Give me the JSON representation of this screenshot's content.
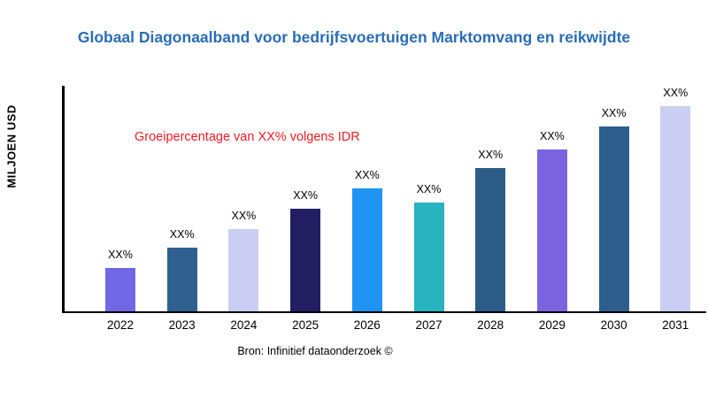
{
  "chart_data": {
    "type": "bar",
    "title": "Globaal Diagonaalband voor bedrijfsvoertuigen Marktomvang en reikwijdte",
    "ylabel": "MILJOEN USD",
    "annotation": "Groeipercentage van XX% volgens IDR",
    "source": "Bron: Infinitief dataonderzoek ©",
    "categories": [
      "2022",
      "2023",
      "2024",
      "2025",
      "2026",
      "2027",
      "2028",
      "2029",
      "2030",
      "2031"
    ],
    "values": [
      21,
      31,
      40,
      50,
      60,
      53,
      70,
      79,
      90,
      100
    ],
    "bar_labels": [
      "XX%",
      "XX%",
      "XX%",
      "XX%",
      "XX%",
      "XX%",
      "XX%",
      "XX%",
      "XX%",
      "XX%"
    ],
    "bar_colors": [
      "#7166e4",
      "#30608f",
      "#c9cef2",
      "#211f62",
      "#2094f3",
      "#29b2bf",
      "#2d5c87",
      "#7b63e0",
      "#2e5e8e",
      "#c9cef2"
    ],
    "ylim": [
      0,
      110
    ],
    "grid": false,
    "legend": "none"
  },
  "colors": {
    "title": "#2a6db6",
    "annotation": "#ec1c24",
    "axis": "#000000"
  }
}
